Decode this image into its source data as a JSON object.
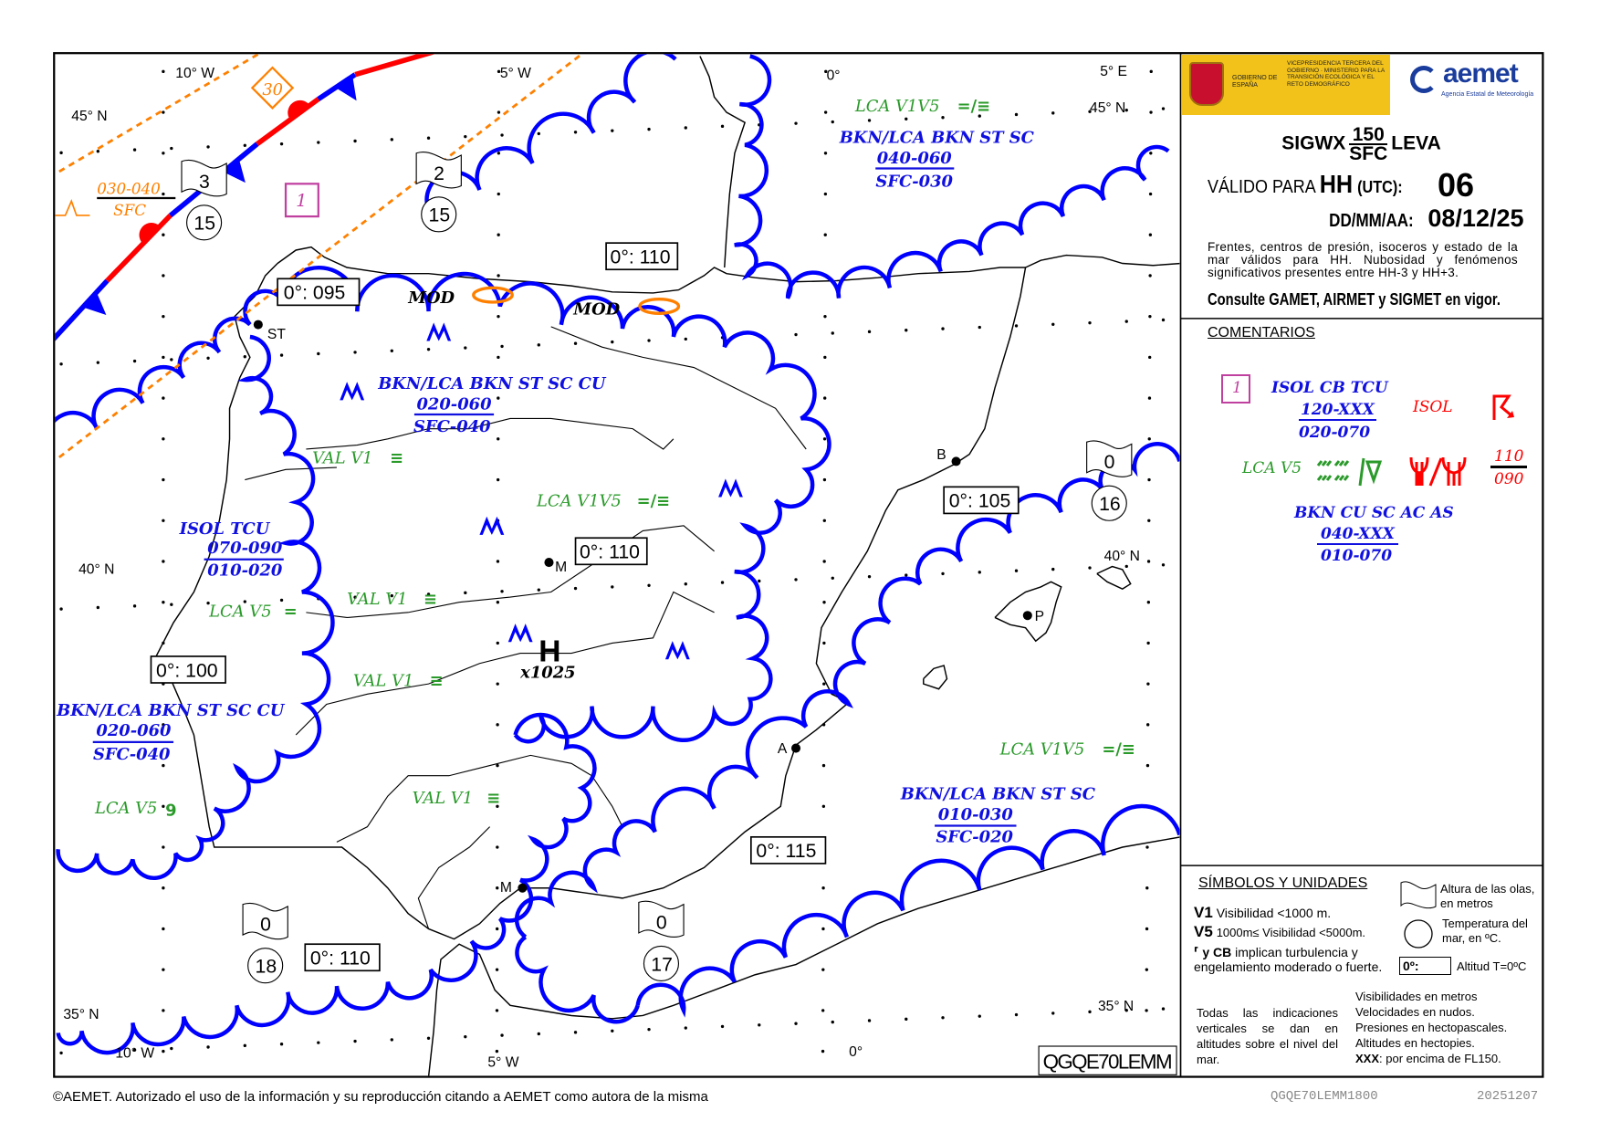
{
  "header": {
    "gov_left": "GOBIERNO DE ESPAÑA",
    "gov_right": "VICEPRESIDENCIA TERCERA DEL GOBIERNO · MINISTERIO PARA LA TRANSICIÓN ECOLÓGICA Y EL RETO DEMOGRÁFICO",
    "aemet_name": "aemet",
    "aemet_sub": "Agencia Estatal de Meteorología",
    "title_prefix": "SIGWX",
    "title_num": "150",
    "title_den": "SFC",
    "title_suffix": "LEVA",
    "valid_label": "VÁLIDO PARA",
    "hh": "HH",
    "utc": "(UTC):",
    "hour": "06",
    "date_label": "DD/MM/AA:",
    "date": "08/12/25",
    "note": "Frentes, centros de presión, isoceros y estado de la mar válidos para HH. Nubosidad y fenómenos significativos presentes entre HH-3 y HH+3.",
    "consult": "Consulte GAMET, AIRMET y SIGMET en vigor."
  },
  "comments": {
    "heading": "COMENTARIOS",
    "area_id": "1",
    "cloud1": "ISOL CB TCU",
    "cloud1_top": "120-XXX",
    "cloud1_base": "020-070",
    "isol": "ISOL",
    "weather": "LCA  V5",
    "icing_top": "110",
    "icing_base": "090",
    "cloud2": "BKN CU SC AC AS",
    "cloud2_top": "040-XXX",
    "cloud2_base": "010-070"
  },
  "symbols": {
    "heading": "SÍMBOLOS Y UNIDADES",
    "v1": "V1",
    "v1_text": "Visibilidad <1000 m.",
    "v5": "V5",
    "v5_text": "1000m≤ Visibilidad <5000m.",
    "turb_cb": "y CB",
    "turb_text": "implican turbulencia y",
    "turb_text2": "engelamiento moderado o fuerte.",
    "wave_text": "Altura de las olas, en metros",
    "sst_text": "Temperatura del mar, en ºC.",
    "fz_box": "0º:",
    "fz_text": "Altitud T=0ºC",
    "vertical_note": "Todas las indicaciones verticales se dan en altitudes sobre el nivel del mar.",
    "units": [
      "Visibilidades en metros",
      "Velocidades en nudos.",
      "Presiones en hectopascales.",
      "Altitudes en hectopies."
    ],
    "xxx": "XXX",
    "xxx_text": ": por encima de FL150."
  },
  "map": {
    "graticule": [
      "10° W",
      "45° N",
      "5° W",
      "0°",
      "5° E",
      "45° N",
      "40° N",
      "40° N",
      "35° N",
      "35° N",
      "10° W",
      "5° W",
      "0°"
    ],
    "cities": [
      "ST",
      "M",
      "B",
      "P",
      "A",
      "M"
    ],
    "freezing_levels": [
      "0°: 095",
      "0°: 110",
      "0°: 110",
      "0°: 100",
      "0°: 105",
      "0°: 115",
      "0°: 110"
    ],
    "sea_state": [
      {
        "wave": "3",
        "sst": "15"
      },
      {
        "wave": "2",
        "sst": "15"
      },
      {
        "wave": "0",
        "sst": "16"
      },
      {
        "wave": "0",
        "sst": "18"
      },
      {
        "wave": "0",
        "sst": "17"
      }
    ],
    "clouds": [
      {
        "type": "BKN/LCA BKN ST SC",
        "top": "040-060",
        "base": "SFC-030"
      },
      {
        "type": "BKN/LCA BKN ST SC CU",
        "top": "020-060",
        "base": "SFC-040"
      },
      {
        "type": "ISOL TCU",
        "top": "070-090",
        "base": "010-020"
      },
      {
        "type": "BKN/LCA BKN ST SC CU",
        "top": "020-060",
        "base": "SFC-040"
      },
      {
        "type": "BKN/LCA BKN ST SC",
        "top": "010-030",
        "base": "SFC-020"
      }
    ],
    "weather": [
      {
        "text": "LCA  V1V5",
        "sym": "=/≡"
      },
      {
        "text": "VAL  V1",
        "sym": "≡"
      },
      {
        "text": "LCA  V1V5",
        "sym": "=/≡"
      },
      {
        "text": "VAL  V1",
        "sym": "≡"
      },
      {
        "text": "LCA  V5",
        "sym": "="
      },
      {
        "text": "VAL  V1",
        "sym": "≡"
      },
      {
        "text": "LCA  V5",
        "sym": "9"
      },
      {
        "text": "VAL  V1",
        "sym": "≡"
      },
      {
        "text": "LCA  V1V5",
        "sym": "=/≡"
      }
    ],
    "turbulence": {
      "top": "030-040",
      "base": "SFC"
    },
    "wind_diamond": "30",
    "area_id": "1",
    "mod": [
      "MOD",
      "MOD"
    ],
    "high": {
      "letter": "H",
      "pressure": "x1025"
    },
    "bulletin_id": "QGQE70LEMM",
    "colors": {
      "cloud": "#0000ff",
      "warm_front": "#ff0000",
      "cold_front": "#0000ff",
      "weather": "#2a9a2a",
      "turbulence": "#ff8000",
      "area_box": "#c040a0",
      "logo_yellow": "#f2c21a"
    }
  },
  "footer": {
    "copyright": "©AEMET. Autorizado el uso de la información y su reproducción citando a AEMET como autora de la misma",
    "code": "QGQE70LEMM1800",
    "date": "20251207"
  }
}
